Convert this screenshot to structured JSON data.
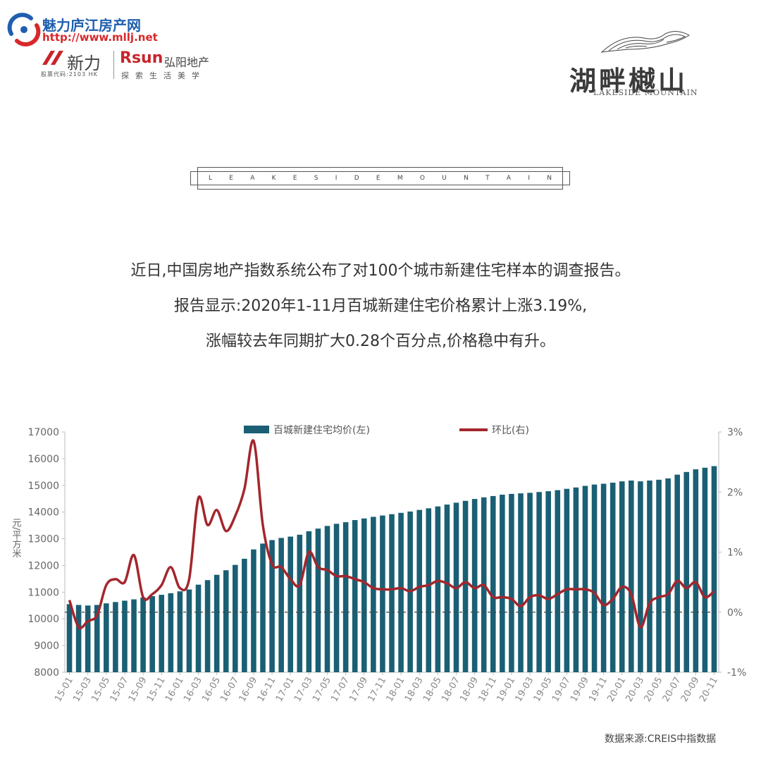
{
  "header": {
    "brand_name": "魅力庐江房产网",
    "brand_url": "http://www.mllj.net",
    "xinli_name": "新力",
    "xinli_code": "股票代码:2103 HK",
    "rsun_name": "Rsun",
    "rsun_cn": "弘阳地产",
    "rsun_slogan": "探索生活美学",
    "project_name": "湖畔樾山",
    "project_en": "LAKESIDE MOUNTAIN"
  },
  "banner": {
    "letters": [
      "L",
      "E",
      "A",
      "K",
      "E",
      "S",
      "I",
      "D",
      "E",
      "M",
      "O",
      "U",
      "N",
      "T",
      "A",
      "I",
      "N"
    ]
  },
  "intro": {
    "line1": "近日,中国房地产指数系统公布了对100个城市新建住宅样本的调查报告。",
    "line2": "报告显示:2020年1-11月百城新建住宅价格累计上涨3.19%,",
    "line3": "涨幅较去年同期扩大0.28个百分点,价格稳中有升。"
  },
  "colors": {
    "bar": "#1a5f74",
    "line": "#a3262c",
    "brand_blue": "#1f5fae",
    "brand_red": "#d8282b"
  },
  "chart_data": {
    "type": "bar",
    "ylabel": "元/平方米",
    "ylim": [
      8000,
      17000
    ],
    "y_ticks": [
      "8000",
      "9000",
      "10000",
      "11000",
      "12000",
      "13000",
      "14000",
      "15000",
      "16000",
      "17000"
    ],
    "y2lim": [
      -1,
      3
    ],
    "y2_ticks": [
      "-1%",
      "0%",
      "1%",
      "2%",
      "3%"
    ],
    "legend": {
      "placement": "top"
    },
    "categories": [
      "15-01",
      "15-02",
      "15-03",
      "15-04",
      "15-05",
      "15-06",
      "15-07",
      "15-08",
      "15-09",
      "15-10",
      "15-11",
      "15-12",
      "16-01",
      "16-02",
      "16-03",
      "16-04",
      "16-05",
      "16-06",
      "16-07",
      "16-08",
      "16-09",
      "16-10",
      "16-11",
      "16-12",
      "17-01",
      "17-02",
      "17-03",
      "17-04",
      "17-05",
      "17-06",
      "17-07",
      "17-08",
      "17-09",
      "17-10",
      "17-11",
      "17-12",
      "18-01",
      "18-02",
      "18-03",
      "18-04",
      "18-05",
      "18-06",
      "18-07",
      "18-08",
      "18-09",
      "18-10",
      "18-11",
      "18-12",
      "19-01",
      "19-02",
      "19-03",
      "19-04",
      "19-05",
      "19-06",
      "19-07",
      "19-08",
      "19-09",
      "19-10",
      "19-11",
      "19-12",
      "20-01",
      "20-02",
      "20-03",
      "20-04",
      "20-05",
      "20-06",
      "20-07",
      "20-08",
      "20-09",
      "20-10",
      "20-11"
    ],
    "x_tick_labels": [
      "15-01",
      "15-03",
      "15-05",
      "15-07",
      "15-09",
      "15-11",
      "16-01",
      "16-03",
      "16-05",
      "16-07",
      "16-09",
      "16-11",
      "17-01",
      "17-03",
      "17-05",
      "17-07",
      "17-09",
      "17-11",
      "18-01",
      "18-03",
      "18-05",
      "18-07",
      "18-09",
      "18-11",
      "19-01",
      "19-03",
      "19-05",
      "19-07",
      "19-09",
      "19-11",
      "20-01",
      "20-03",
      "20-05",
      "20-07",
      "20-09",
      "20-11"
    ],
    "series": [
      {
        "name": "百城新建住宅均价(左)",
        "type": "bar",
        "axis": "left",
        "values": [
          10550,
          10520,
          10500,
          10520,
          10580,
          10630,
          10680,
          10730,
          10800,
          10850,
          10900,
          10960,
          11030,
          11100,
          11280,
          11450,
          11650,
          11820,
          12020,
          12250,
          12600,
          12820,
          12950,
          13030,
          13080,
          13150,
          13280,
          13380,
          13480,
          13560,
          13620,
          13700,
          13760,
          13820,
          13870,
          13920,
          13970,
          14020,
          14080,
          14140,
          14210,
          14280,
          14350,
          14420,
          14490,
          14550,
          14600,
          14650,
          14680,
          14700,
          14720,
          14750,
          14780,
          14820,
          14870,
          14920,
          14980,
          15030,
          15060,
          15100,
          15150,
          15180,
          15150,
          15180,
          15210,
          15260,
          15400,
          15500,
          15600,
          15660,
          15720
        ]
      },
      {
        "name": "环比(右)",
        "type": "line",
        "axis": "right",
        "values": [
          0.2,
          -0.25,
          -0.15,
          -0.05,
          0.45,
          0.55,
          0.5,
          0.95,
          0.25,
          0.3,
          0.45,
          0.75,
          0.4,
          0.55,
          1.9,
          1.45,
          1.7,
          1.35,
          1.6,
          2.05,
          2.85,
          1.45,
          0.8,
          0.75,
          0.55,
          0.45,
          1.0,
          0.75,
          0.7,
          0.6,
          0.6,
          0.55,
          0.5,
          0.4,
          0.38,
          0.38,
          0.4,
          0.35,
          0.42,
          0.45,
          0.52,
          0.48,
          0.4,
          0.5,
          0.4,
          0.45,
          0.25,
          0.25,
          0.22,
          0.1,
          0.25,
          0.28,
          0.22,
          0.3,
          0.38,
          0.38,
          0.38,
          0.32,
          0.12,
          0.22,
          0.42,
          0.3,
          -0.25,
          0.15,
          0.25,
          0.3,
          0.52,
          0.4,
          0.5,
          0.25,
          0.35
        ]
      }
    ],
    "reference_line": {
      "axis": "right",
      "value": 0,
      "style": "dashed"
    }
  },
  "source_note": "数据来源:CREIS中指数据"
}
